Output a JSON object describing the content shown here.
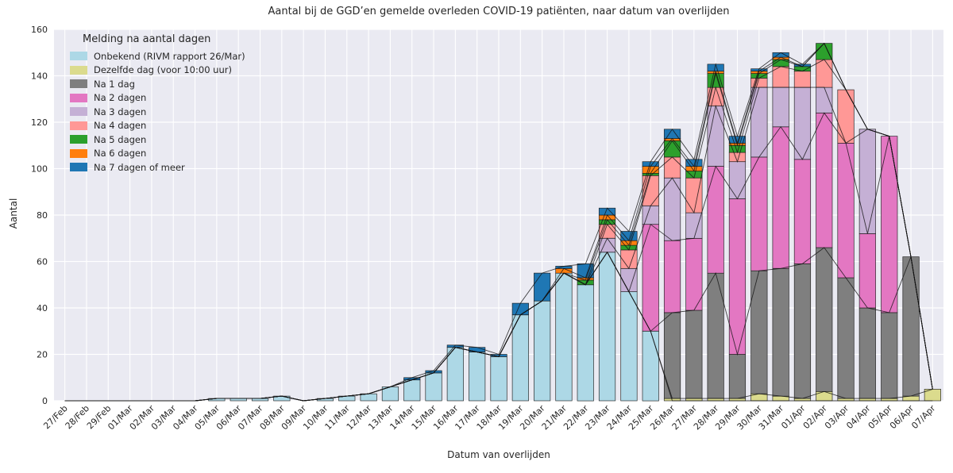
{
  "chart_data": {
    "type": "bar",
    "stacked": true,
    "title": "Aantal bij de GGD’en gemelde overleden COVID-19 patiënten, naar datum van overlijden",
    "xlabel": "Datum van overlijden",
    "ylabel": "Aantal",
    "ylim": [
      0,
      160
    ],
    "yticks": [
      0,
      20,
      40,
      60,
      80,
      100,
      120,
      140,
      160
    ],
    "legend_title": "Melding na aantal dagen",
    "legend_position": "upper-left",
    "grid": true,
    "plot_background": "#EAEAF2",
    "grid_color": "#FFFFFF",
    "categories": [
      "27/Feb",
      "28/Feb",
      "29/Feb",
      "01/Mar",
      "02/Mar",
      "03/Mar",
      "04/Mar",
      "05/Mar",
      "06/Mar",
      "07/Mar",
      "08/Mar",
      "09/Mar",
      "10/Mar",
      "11/Mar",
      "12/Mar",
      "13/Mar",
      "14/Mar",
      "15/Mar",
      "16/Mar",
      "17/Mar",
      "18/Mar",
      "19/Mar",
      "20/Mar",
      "21/Mar",
      "22/Mar",
      "23/Mar",
      "24/Mar",
      "25/Mar",
      "26/Mar",
      "27/Mar",
      "28/Mar",
      "29/Mar",
      "30/Mar",
      "31/Mar",
      "01/Apr",
      "02/Apr",
      "03/Apr",
      "04/Apr",
      "05/Apr",
      "06/Apr",
      "07/Apr"
    ],
    "series": [
      {
        "name": "Onbekend (RIVM rapport 26/Mar)",
        "color": "#ADD8E6",
        "values": [
          0,
          0,
          0,
          0,
          0,
          0,
          0,
          1,
          1,
          1,
          2,
          0,
          1,
          2,
          3,
          6,
          9,
          12,
          23,
          21,
          19,
          37,
          43,
          55,
          50,
          64,
          47,
          30,
          0,
          0,
          0,
          0,
          0,
          0,
          0,
          0,
          0,
          0,
          0,
          0,
          0
        ]
      },
      {
        "name": "Dezelfde dag (voor 10:00 uur)",
        "color": "#DBDB8D",
        "values": [
          0,
          0,
          0,
          0,
          0,
          0,
          0,
          0,
          0,
          0,
          0,
          0,
          0,
          0,
          0,
          0,
          0,
          0,
          0,
          0,
          0,
          0,
          0,
          0,
          0,
          0,
          0,
          0,
          1,
          1,
          1,
          1,
          3,
          2,
          1,
          4,
          1,
          1,
          1,
          2,
          5
        ]
      },
      {
        "name": "Na 1 dag",
        "color": "#7F7F7F",
        "values": [
          0,
          0,
          0,
          0,
          0,
          0,
          0,
          0,
          0,
          0,
          0,
          0,
          0,
          0,
          0,
          0,
          0,
          0,
          0,
          0,
          0,
          0,
          0,
          0,
          0,
          0,
          0,
          0,
          37,
          38,
          54,
          19,
          53,
          55,
          58,
          62,
          52,
          39,
          37,
          60,
          0
        ]
      },
      {
        "name": "Na 2 dagen",
        "color": "#E377C2",
        "values": [
          0,
          0,
          0,
          0,
          0,
          0,
          0,
          0,
          0,
          0,
          0,
          0,
          0,
          0,
          0,
          0,
          0,
          0,
          0,
          0,
          0,
          0,
          0,
          0,
          0,
          0,
          0,
          46,
          31,
          31,
          46,
          67,
          49,
          61,
          45,
          58,
          58,
          32,
          76,
          0,
          0
        ]
      },
      {
        "name": "Na 3 dagen",
        "color": "#C5B0D5",
        "values": [
          0,
          0,
          0,
          0,
          0,
          0,
          0,
          0,
          0,
          0,
          0,
          0,
          0,
          0,
          0,
          0,
          0,
          0,
          0,
          0,
          0,
          0,
          0,
          0,
          0,
          6,
          10,
          8,
          27,
          11,
          26,
          16,
          30,
          17,
          31,
          11,
          0,
          45,
          0,
          0,
          0
        ]
      },
      {
        "name": "Na 4 dagen",
        "color": "#FF9896",
        "values": [
          0,
          0,
          0,
          0,
          0,
          0,
          0,
          0,
          0,
          0,
          0,
          0,
          0,
          0,
          0,
          0,
          0,
          0,
          0,
          0,
          0,
          0,
          0,
          0,
          0,
          6,
          8,
          13,
          9,
          15,
          8,
          4,
          4,
          9,
          7,
          12,
          23,
          0,
          0,
          0,
          0
        ]
      },
      {
        "name": "Na 5 dagen",
        "color": "#2CA02C",
        "values": [
          0,
          0,
          0,
          0,
          0,
          0,
          0,
          0,
          0,
          0,
          0,
          0,
          0,
          0,
          0,
          0,
          0,
          0,
          0,
          0,
          0,
          0,
          0,
          0,
          2,
          2,
          2,
          1,
          7,
          3,
          6,
          3,
          2,
          3,
          2,
          7,
          0,
          0,
          0,
          0,
          0
        ]
      },
      {
        "name": "Na 6 dagen",
        "color": "#FF7F0E",
        "values": [
          0,
          0,
          0,
          0,
          0,
          0,
          0,
          0,
          0,
          0,
          0,
          0,
          0,
          0,
          0,
          0,
          0,
          0,
          0,
          0,
          0,
          0,
          0,
          2,
          1,
          2,
          2,
          3,
          1,
          2,
          1,
          1,
          1,
          1,
          0,
          0,
          0,
          0,
          0,
          0,
          0
        ]
      },
      {
        "name": "Na 7 dagen of meer",
        "color": "#1F77B4",
        "values": [
          0,
          0,
          0,
          0,
          0,
          0,
          0,
          0,
          0,
          0,
          0,
          0,
          0,
          0,
          0,
          0,
          1,
          1,
          1,
          2,
          1,
          5,
          12,
          1,
          6,
          3,
          4,
          2,
          4,
          3,
          3,
          3,
          1,
          2,
          1,
          0,
          0,
          0,
          0,
          0,
          0
        ]
      }
    ]
  }
}
